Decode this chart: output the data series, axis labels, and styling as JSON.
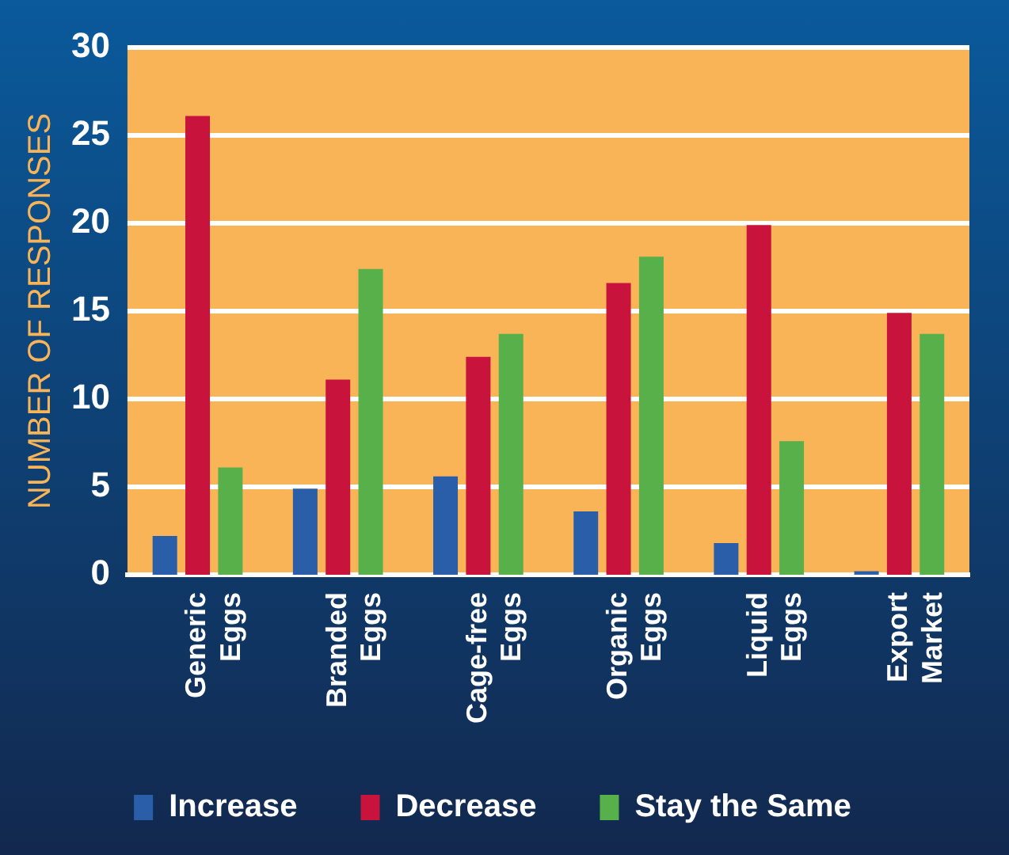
{
  "chart_data": {
    "type": "bar",
    "ylabel": "NUMBER OF RESPONSES",
    "categories": [
      "Generic Eggs",
      "Branded Eggs",
      "Cage-free Eggs",
      "Organic Eggs",
      "Liquid Eggs",
      "Export Market"
    ],
    "series": [
      {
        "name": "Increase",
        "color": "#2a5ea8",
        "values": [
          2.2,
          4.9,
          5.6,
          3.6,
          1.8,
          0.2
        ]
      },
      {
        "name": "Decrease",
        "color": "#c8143c",
        "values": [
          26.1,
          11.1,
          12.4,
          16.6,
          19.9,
          14.9
        ]
      },
      {
        "name": "Stay the Same",
        "color": "#58b04a",
        "values": [
          6.1,
          17.4,
          13.7,
          18.1,
          7.6,
          13.7
        ]
      }
    ],
    "ylim": [
      0,
      30
    ],
    "yticks": [
      0,
      5,
      10,
      15,
      20,
      25,
      30
    ],
    "grid": "y",
    "legend": "bottom"
  }
}
